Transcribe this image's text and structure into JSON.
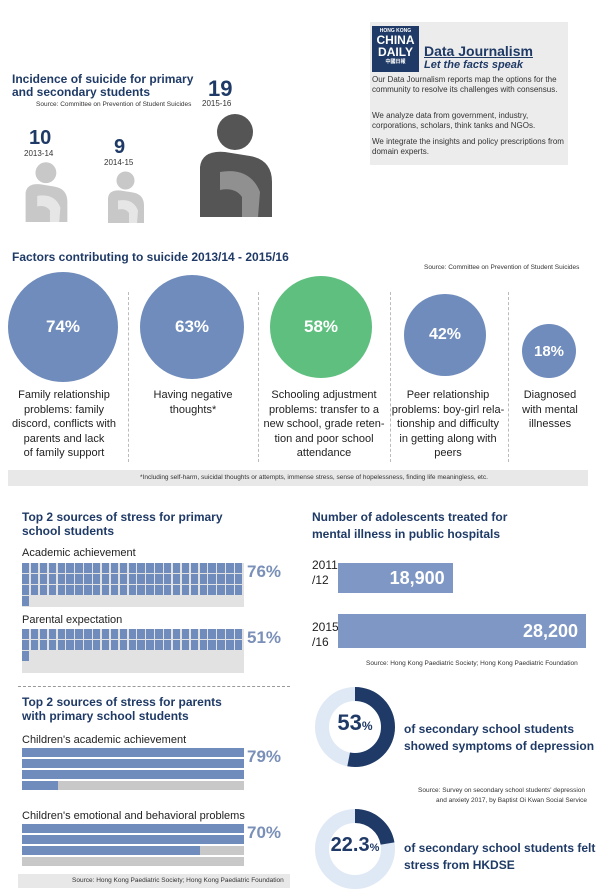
{
  "brand": {
    "logo_line1": "HONG KONG",
    "logo_line2": "CHINA",
    "logo_line3": "DAILY",
    "logo_line4": "中國日報",
    "title": "Data Journalism",
    "subtitle": "Let the facts speak",
    "para1": "Our Data Journalism reports map the options for the community to resolve its challenges with consensus.",
    "para2": "We analyze data from government, industry, corporations, scholars, think tanks and NGOs.",
    "para3": "We integrate the insights and policy prescriptions from domain experts."
  },
  "suicide": {
    "title_line1": "Incidence of suicide for primary",
    "title_line2": "and secondary students",
    "source": "Source: Committee on Prevention of Student Suicides",
    "items": [
      {
        "value": "10",
        "year": "2013-14"
      },
      {
        "value": "9",
        "year": "2014-15"
      },
      {
        "value": "19",
        "year": "2015-16"
      }
    ]
  },
  "factors": {
    "title": "Factors contributing to suicide 2013/14 - 2015/16",
    "source": "Source: Committee on Prevention of Student Suicides",
    "items": [
      {
        "pct": "74%",
        "l1": "Family relationship",
        "l2": "problems: family",
        "l3": "discord, conflicts with",
        "l4": "parents and lack",
        "l5": "of family support"
      },
      {
        "pct": "63%",
        "l1": "Having negative",
        "l2": "thoughts*"
      },
      {
        "pct": "58%",
        "l1": "Schooling adjustment",
        "l2": "problems: transfer to a",
        "l3": "new school, grade reten-",
        "l4": "tion and poor school",
        "l5": "attendance"
      },
      {
        "pct": "42%",
        "l1": "Peer relationship",
        "l2": "problems: boy-girl rela-",
        "l3": "tionship and difficulty",
        "l4": "in getting along with",
        "l5": "peers"
      },
      {
        "pct": "18%",
        "l1": "Diagnosed",
        "l2": "with mental",
        "l3": "illnesses"
      }
    ],
    "footnote": "*Including self-harm, suicidal thoughts or attempts, immense stress, sense of hopelessness, finding life meaningless, etc."
  },
  "students_stress": {
    "title_line1": "Top 2 sources of stress for primary",
    "title_line2": "school students",
    "items": [
      {
        "label": "Academic achievement",
        "pct": "76%"
      },
      {
        "label": "Parental expectation",
        "pct": "51%"
      }
    ]
  },
  "parents_stress": {
    "title_line1": "Top 2 sources of stress for parents",
    "title_line2": "with primary school students",
    "items": [
      {
        "label": "Children's academic achievement",
        "pct": "79%"
      },
      {
        "label": "Children's emotional and behavioral problems",
        "pct": "70%"
      }
    ],
    "source": "Source: Hong Kong Paediatric Society; Hong Kong Paediatric Foundation"
  },
  "mental": {
    "title_line1": "Number of adolescents treated for",
    "title_line2": "mental illness in public hospitals",
    "items": [
      {
        "y1": "2011",
        "y2": "/12",
        "value": "18,900"
      },
      {
        "y1": "2015",
        "y2": "/16",
        "value": "28,200"
      }
    ],
    "source": "Source: Hong Kong Paediatric Society; Hong Kong Paediatric Foundation"
  },
  "depression": {
    "num": "53",
    "unit": "%",
    "line1": "of secondary school students",
    "line2": "showed symptoms of depression",
    "source1": "Source: Survey on secondary school students' depression",
    "source2": "and anxiety 2017, by Baptist Oi Kwan Social Service"
  },
  "hkdse": {
    "num": "22.3",
    "unit": "%",
    "line1": "of secondary school students felt",
    "line2": "stress from HKDSE"
  },
  "colors": {
    "navy": "#1f3a66",
    "blue": "#6f8cbc",
    "green": "#5fbf7f",
    "gray": "#c8c8c8",
    "dark": "#555555"
  },
  "chart_data": [
    {
      "type": "bar",
      "title": "Incidence of suicide for primary and secondary students",
      "categories": [
        "2013-14",
        "2014-15",
        "2015-16"
      ],
      "values": [
        10,
        9,
        19
      ]
    },
    {
      "type": "bar",
      "title": "Factors contributing to suicide 2013/14 - 2015/16",
      "categories": [
        "Family relationship problems",
        "Having negative thoughts",
        "Schooling adjustment problems",
        "Peer relationship problems",
        "Diagnosed with mental illnesses"
      ],
      "values": [
        74,
        63,
        58,
        42,
        18
      ]
    },
    {
      "type": "bar",
      "title": "Top 2 sources of stress for primary school students",
      "categories": [
        "Academic achievement",
        "Parental expectation"
      ],
      "values": [
        76,
        51
      ]
    },
    {
      "type": "bar",
      "title": "Top 2 sources of stress for parents with primary school students",
      "categories": [
        "Children's academic achievement",
        "Children's emotional and behavioral problems"
      ],
      "values": [
        79,
        70
      ]
    },
    {
      "type": "bar",
      "title": "Number of adolescents treated for mental illness in public hospitals",
      "categories": [
        "2011/12",
        "2015/16"
      ],
      "values": [
        18900,
        28200
      ]
    },
    {
      "type": "pie",
      "values": [
        53,
        47
      ]
    },
    {
      "type": "pie",
      "values": [
        22.3,
        77.7
      ]
    }
  ]
}
